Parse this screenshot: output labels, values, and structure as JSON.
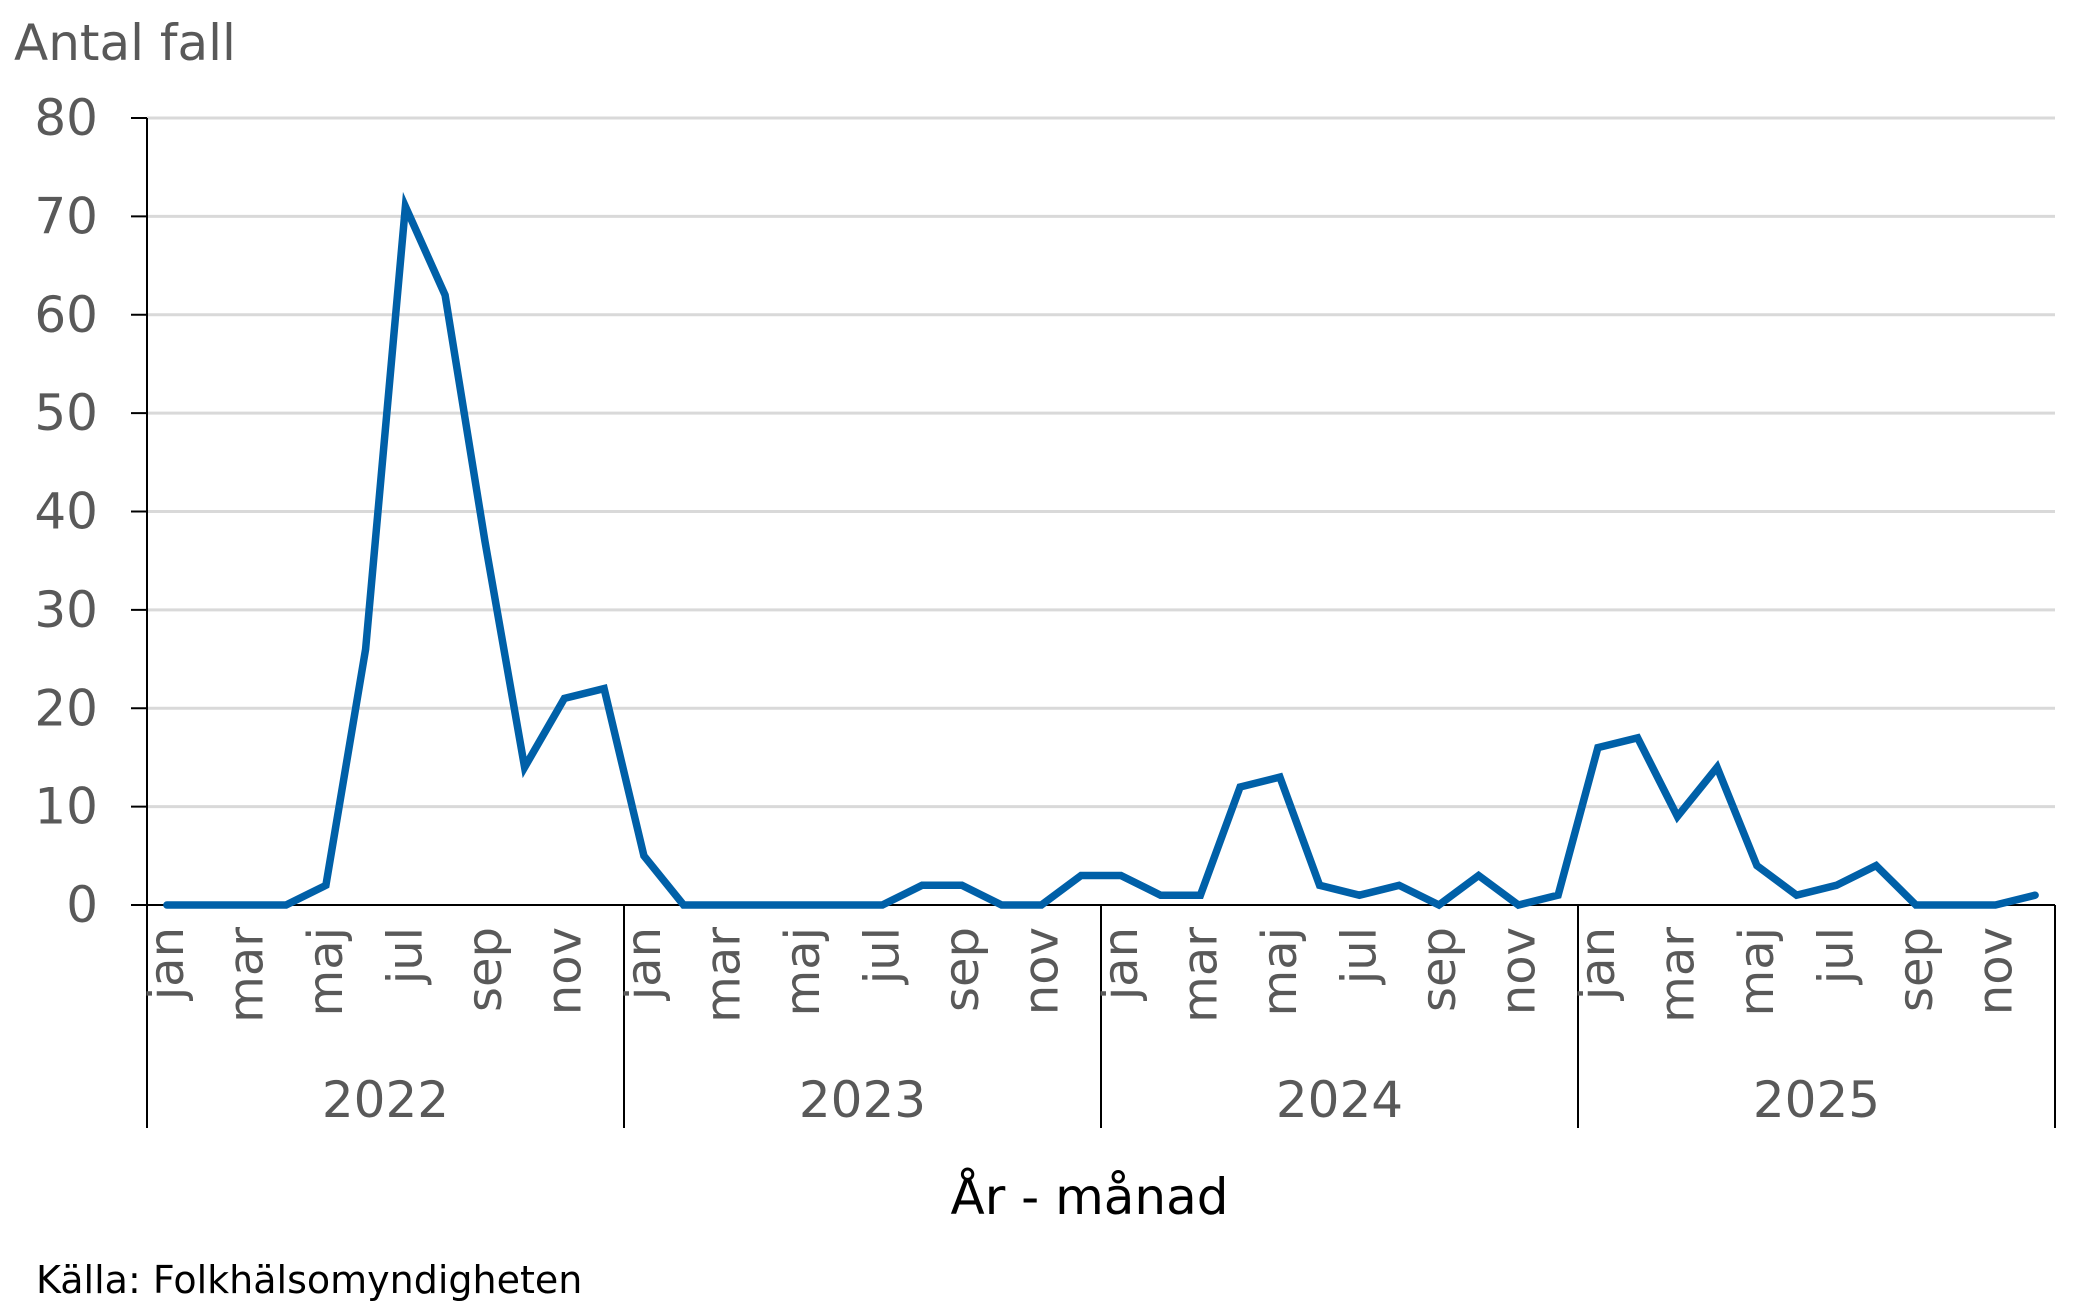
{
  "chart_data": {
    "type": "line",
    "ylabel": "Antal fall",
    "xlabel": "År - månad",
    "ylim": [
      0,
      80
    ],
    "yticks": [
      0,
      10,
      20,
      30,
      40,
      50,
      60,
      70,
      80
    ],
    "grid": true,
    "years": [
      "2022",
      "2023",
      "2024",
      "2025"
    ],
    "month_labels": [
      "jan",
      "mar",
      "maj",
      "jul",
      "sep",
      "nov"
    ],
    "x": [
      "2022-01",
      "2022-02",
      "2022-03",
      "2022-04",
      "2022-05",
      "2022-06",
      "2022-07",
      "2022-08",
      "2022-09",
      "2022-10",
      "2022-11",
      "2022-12",
      "2023-01",
      "2023-02",
      "2023-03",
      "2023-04",
      "2023-05",
      "2023-06",
      "2023-07",
      "2023-08",
      "2023-09",
      "2023-10",
      "2023-11",
      "2023-12",
      "2024-01",
      "2024-02",
      "2024-03",
      "2024-04",
      "2024-05",
      "2024-06",
      "2024-07",
      "2024-08",
      "2024-09",
      "2024-10",
      "2024-11",
      "2024-12",
      "2025-01",
      "2025-02",
      "2025-03",
      "2025-04",
      "2025-05",
      "2025-06",
      "2025-07",
      "2025-08",
      "2025-09",
      "2025-10",
      "2025-11",
      "2025-12"
    ],
    "series": [
      {
        "values": [
          0,
          0,
          0,
          0,
          2,
          26,
          71,
          62,
          37,
          14,
          21,
          22,
          5,
          0,
          0,
          0,
          0,
          0,
          0,
          2,
          2,
          0,
          0,
          3,
          3,
          1,
          1,
          12,
          13,
          2,
          1,
          2,
          0,
          3,
          0,
          1,
          16,
          17,
          9,
          14,
          4,
          1,
          2,
          4,
          0,
          0,
          0,
          1
        ],
        "color": "#0060A8"
      }
    ],
    "gridline_color": "#D9D9D9",
    "axis_color": "#000000",
    "tick_label_color": "#595959"
  },
  "source": "Källa: Folkhälsomyndigheten"
}
